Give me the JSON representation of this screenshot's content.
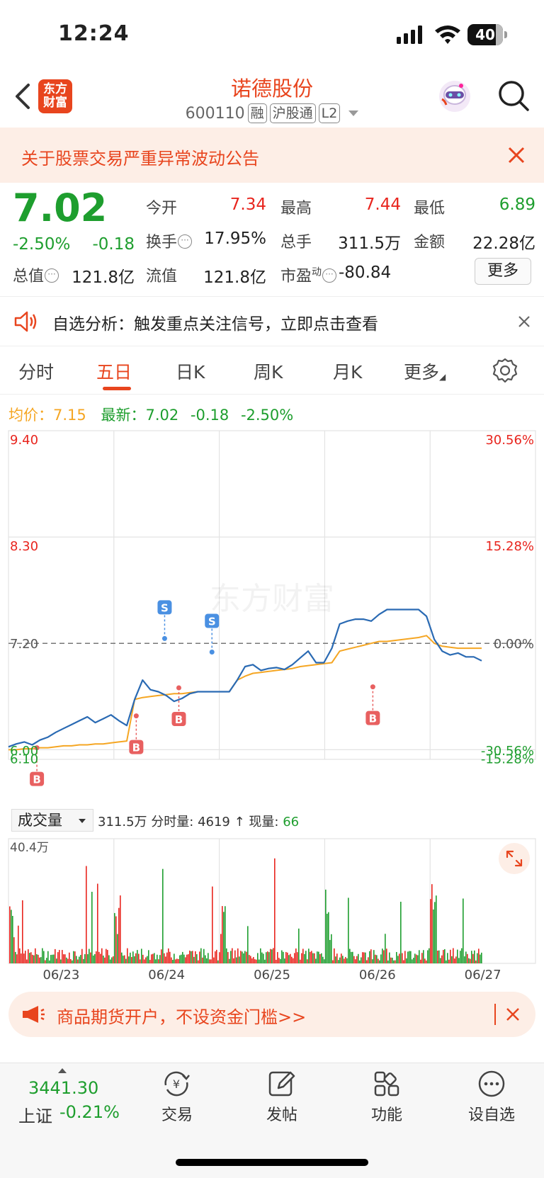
{
  "status_bar": {
    "time": "12:24",
    "battery": "40"
  },
  "header": {
    "logo_text": "东方财富",
    "stock_name": "诺德股份",
    "stock_code": "600110",
    "tags": [
      "融",
      "沪股通",
      "L2"
    ]
  },
  "announcement": {
    "text": "关于股票交易严重异常波动公告"
  },
  "quote": {
    "price": "7.02",
    "change_pct": "-2.50%",
    "change": "-0.18",
    "open_label": "今开",
    "open": "7.34",
    "high_label": "最高",
    "high": "7.44",
    "low_label": "最低",
    "low": "6.89",
    "turnover_label": "换手",
    "turnover": "17.95%",
    "volume_label": "总手",
    "volume": "311.5万",
    "amount_label": "金额",
    "amount": "22.28亿",
    "mktcap_label": "总值",
    "mktcap": "121.8亿",
    "float_label": "流值",
    "float_cap": "121.8亿",
    "pe_label": "市盈",
    "pe_sup": "动",
    "pe": "-80.84",
    "more_label": "更多"
  },
  "analysis_banner": {
    "text": "自选分析：触发重点关注信号，立即点击查看"
  },
  "tabs": [
    "分时",
    "五日",
    "日K",
    "周K",
    "月K",
    "更多"
  ],
  "avg_line": {
    "avg_label": "均价：",
    "avg_value": "7.15",
    "latest_label": "最新：",
    "latest_value": "7.02",
    "latest_change": "-0.18",
    "latest_pct": "-2.50%"
  },
  "watermark": "东方财富",
  "volume_header": {
    "selector": "成交量",
    "total": "311.5万",
    "tick_label": "分时量:",
    "tick_value": "4619",
    "now_label": "现量:",
    "now_value": "66"
  },
  "colors": {
    "up": "#e8251e",
    "down": "#1e9e2e",
    "price_line": "#2a6ab3",
    "avg_line": "#f5a623",
    "brand": "#e8451e"
  },
  "chart_data": [
    {
      "type": "line",
      "title": "五日分时",
      "x_ticks": [
        "06/23",
        "06/24",
        "06/25",
        "06/26",
        "06/27"
      ],
      "ylim": [
        6.0,
        9.4
      ],
      "y_ticks_left": [
        "9.40",
        "8.30",
        "7.20",
        "6.10",
        "6.00"
      ],
      "y_ticks_right": [
        "30.56%",
        "15.28%",
        "0.00%",
        "-15.28%",
        "-30.56%"
      ],
      "prev_close": 7.2,
      "series": [
        {
          "name": "价格",
          "values": [
            6.13,
            6.16,
            6.18,
            6.15,
            6.2,
            6.23,
            6.28,
            6.32,
            6.36,
            6.4,
            6.44,
            6.38,
            6.42,
            6.46,
            6.4,
            6.35,
            6.62,
            6.82,
            6.72,
            6.7,
            6.66,
            6.6,
            6.63,
            6.68,
            6.7,
            6.7,
            6.7,
            6.7,
            6.7,
            6.82,
            6.96,
            6.98,
            6.92,
            6.94,
            6.95,
            6.93,
            6.98,
            7.05,
            7.12,
            7.0,
            7.0,
            7.15,
            7.4,
            7.43,
            7.45,
            7.45,
            7.43,
            7.5,
            7.55,
            7.55,
            7.55,
            7.55,
            7.55,
            7.48,
            7.24,
            7.12,
            7.08,
            7.1,
            7.06,
            7.06,
            7.02
          ]
        },
        {
          "name": "均价",
          "values": [
            6.1,
            6.1,
            6.11,
            6.11,
            6.12,
            6.12,
            6.13,
            6.14,
            6.14,
            6.15,
            6.15,
            6.16,
            6.16,
            6.17,
            6.18,
            6.19,
            6.62,
            6.64,
            6.65,
            6.66,
            6.67,
            6.68,
            6.68,
            6.69,
            6.7,
            6.7,
            6.7,
            6.7,
            6.7,
            6.82,
            6.86,
            6.89,
            6.9,
            6.91,
            6.92,
            6.93,
            6.94,
            6.96,
            6.97,
            6.98,
            6.99,
            7.0,
            7.12,
            7.14,
            7.16,
            7.18,
            7.2,
            7.22,
            7.22,
            7.23,
            7.24,
            7.25,
            7.26,
            7.28,
            7.2,
            7.17,
            7.16,
            7.15,
            7.15,
            7.15,
            7.15
          ]
        }
      ],
      "trade_markers": [
        {
          "label": "B",
          "x": 0.06,
          "y": 6.12
        },
        {
          "label": "B",
          "x": 0.27,
          "y": 6.45
        },
        {
          "label": "B",
          "x": 0.36,
          "y": 6.74
        },
        {
          "label": "S",
          "x": 0.33,
          "y": 7.25
        },
        {
          "label": "S",
          "x": 0.43,
          "y": 7.11
        },
        {
          "label": "B",
          "x": 0.77,
          "y": 6.75
        }
      ]
    },
    {
      "type": "bar",
      "title": "成交量",
      "ylim": [
        0,
        40.4
      ],
      "y_unit": "万",
      "y_ticks": [
        "40.4万"
      ],
      "x_ticks": [
        "06/23",
        "06/24",
        "06/25",
        "06/26",
        "06/27"
      ]
    }
  ],
  "promo": {
    "text": "商品期货开户，不设资金门槛>>"
  },
  "bottom_bar": {
    "index_value": "3441.30",
    "index_name": "上证",
    "index_pct": "-0.21%",
    "items": [
      "交易",
      "发帖",
      "功能",
      "设自选"
    ]
  }
}
